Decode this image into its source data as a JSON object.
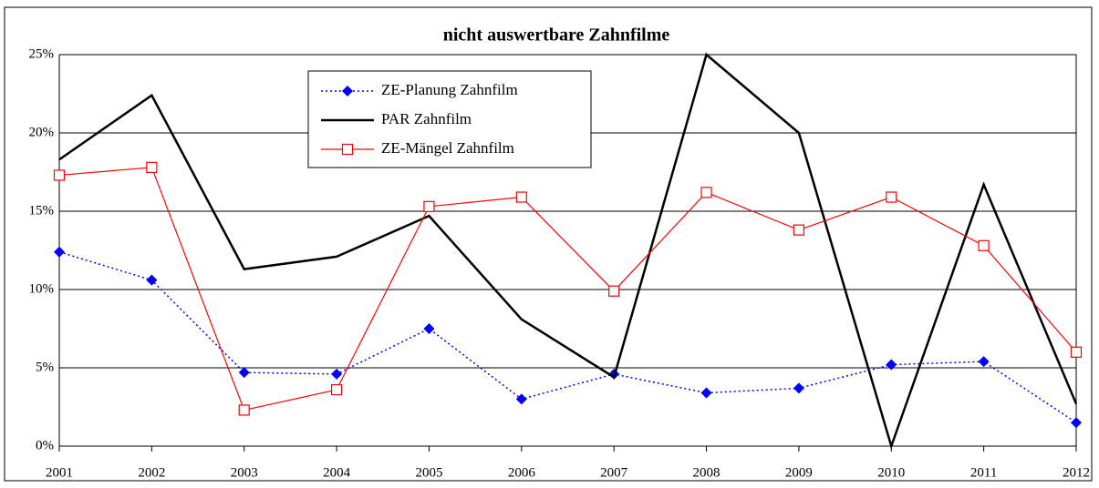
{
  "chart_data": {
    "type": "line",
    "title": "nicht auswertbare Zahnfilme",
    "categories": [
      "2001",
      "2002",
      "2003",
      "2004",
      "2005",
      "2006",
      "2007",
      "2008",
      "2009",
      "2010",
      "2011",
      "2012"
    ],
    "series": [
      {
        "name": "ZE-Planung Zahnfilm",
        "color": "#0000ff",
        "values": [
          12.4,
          10.6,
          4.7,
          4.6,
          7.5,
          3.0,
          4.6,
          3.4,
          3.7,
          5.2,
          5.4,
          1.5
        ]
      },
      {
        "name": "PAR Zahnfilm",
        "color": "#000000",
        "values": [
          18.3,
          22.4,
          11.3,
          12.1,
          14.7,
          8.1,
          4.4,
          25.0,
          20.0,
          0,
          16.7,
          2.7
        ]
      },
      {
        "name": "ZE-Mängel Zahnfilm",
        "color": "#ff0000",
        "values": [
          17.3,
          17.8,
          2.3,
          3.6,
          15.3,
          15.9,
          9.9,
          16.2,
          13.8,
          15.9,
          12.8,
          6.0
        ]
      }
    ],
    "ylim": [
      0,
      25
    ],
    "yticks": [
      {
        "value": 0,
        "label": "0%"
      },
      {
        "value": 5,
        "label": "5%"
      },
      {
        "value": 10,
        "label": "10%"
      },
      {
        "value": 15,
        "label": "15%"
      },
      {
        "value": 20,
        "label": "20%"
      },
      {
        "value": 25,
        "label": "25%"
      }
    ],
    "grid": true
  }
}
